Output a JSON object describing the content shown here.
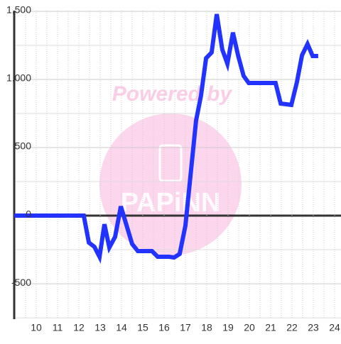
{
  "chart_data": {
    "type": "line",
    "watermark": [
      "Powered by",
      "PAPiNN"
    ],
    "x": [
      8.967,
      12.23,
      12.47,
      12.73,
      12.97,
      13.2,
      13.43,
      13.7,
      13.97,
      14.2,
      14.5,
      14.77,
      15.43,
      15.7,
      16.23,
      16.47,
      16.73,
      17.0,
      17.23,
      17.5,
      17.73,
      17.97,
      18.23,
      18.47,
      18.73,
      18.97,
      19.23,
      19.47,
      19.73,
      19.97,
      21.23,
      21.47,
      21.97,
      22.23,
      22.47,
      22.73,
      22.97,
      23.23
    ],
    "series": [
      {
        "color": "#2233ff",
        "values": [
          0,
          0,
          -198,
          -229,
          -302,
          -63,
          -234,
          -156,
          68,
          -52,
          -208,
          -260,
          -260,
          -302,
          -302,
          -307,
          -281,
          -73,
          281,
          698,
          880,
          1156,
          1198,
          1479,
          1219,
          1115,
          1344,
          1177,
          1026,
          974,
          974,
          823,
          813,
          979,
          1177,
          1260,
          1172,
          1172
        ]
      }
    ],
    "xlim": [
      8.967,
      24.3
    ],
    "ylim": [
      -760,
      1505
    ],
    "xticks": [
      10,
      11,
      12,
      13,
      14,
      15,
      16,
      17,
      18,
      19,
      20,
      21,
      22,
      23,
      24
    ],
    "minor_xticks": [
      9,
      9.5,
      10.5,
      11.5,
      12.5,
      13.5,
      14.5,
      15.5,
      16.5,
      17.5,
      18.5,
      19.5,
      20.5,
      21.5,
      22.5,
      23.5
    ],
    "yticks": [
      {
        "value": 1500,
        "label": "1,500"
      },
      {
        "value": 1000,
        "label": "1,000"
      },
      500,
      0,
      -500
    ],
    "minor_yticks": [
      1250,
      750,
      250,
      -250,
      -750
    ],
    "grid": true
  }
}
